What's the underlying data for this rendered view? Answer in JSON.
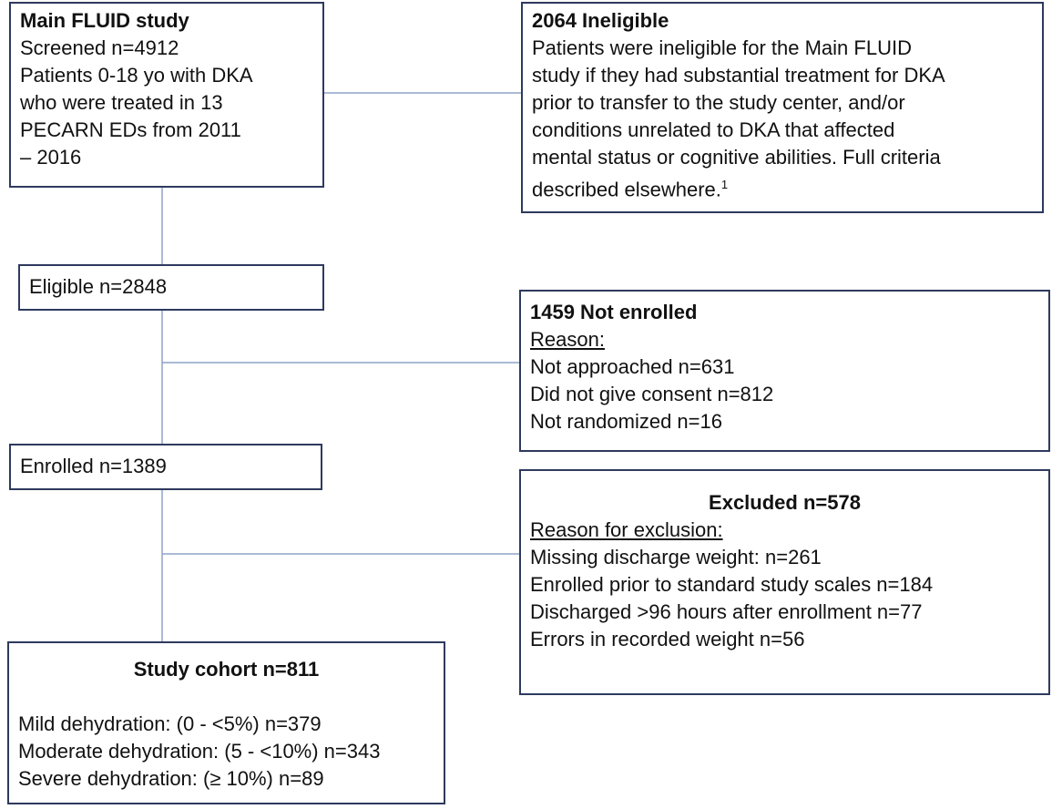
{
  "nodes": [
    {
      "title": "Main FLUID study",
      "lines": [
        "Screened n=4912",
        "Patients 0-18 yo with DKA",
        "who were treated in 13",
        "PECARN EDs from 2011",
        "– 2016"
      ]
    },
    {
      "title": "2064 Ineligible",
      "lines": [
        "Patients were ineligible for the Main FLUID",
        "study if they had substantial treatment for DKA",
        "prior to transfer to the study center, and/or",
        "conditions unrelated to DKA that affected",
        "mental status or cognitive abilities. Full criteria",
        "described elsewhere."
      ],
      "footnote": "1"
    },
    {
      "title": "Eligible n=2848"
    },
    {
      "title": "1459 Not enrolled",
      "subtitle": "Reason:",
      "lines": [
        "Not approached n=631",
        "Did not give consent n=812",
        "Not randomized n=16"
      ]
    },
    {
      "title": "Enrolled n=1389"
    },
    {
      "title": "Excluded n=578",
      "subtitle": "Reason for exclusion:",
      "lines": [
        "Missing discharge weight: n=261",
        "Enrolled prior to standard study scales n=184",
        "Discharged >96 hours after enrollment n=77",
        "Errors in recorded weight n=56"
      ]
    },
    {
      "title": "Study cohort n=811",
      "lines": [
        "Mild dehydration: (0 - <5%) n=379",
        "Moderate dehydration: (5 - <10%) n=343",
        "Severe dehydration: (≥ 10%) n=89"
      ]
    }
  ]
}
